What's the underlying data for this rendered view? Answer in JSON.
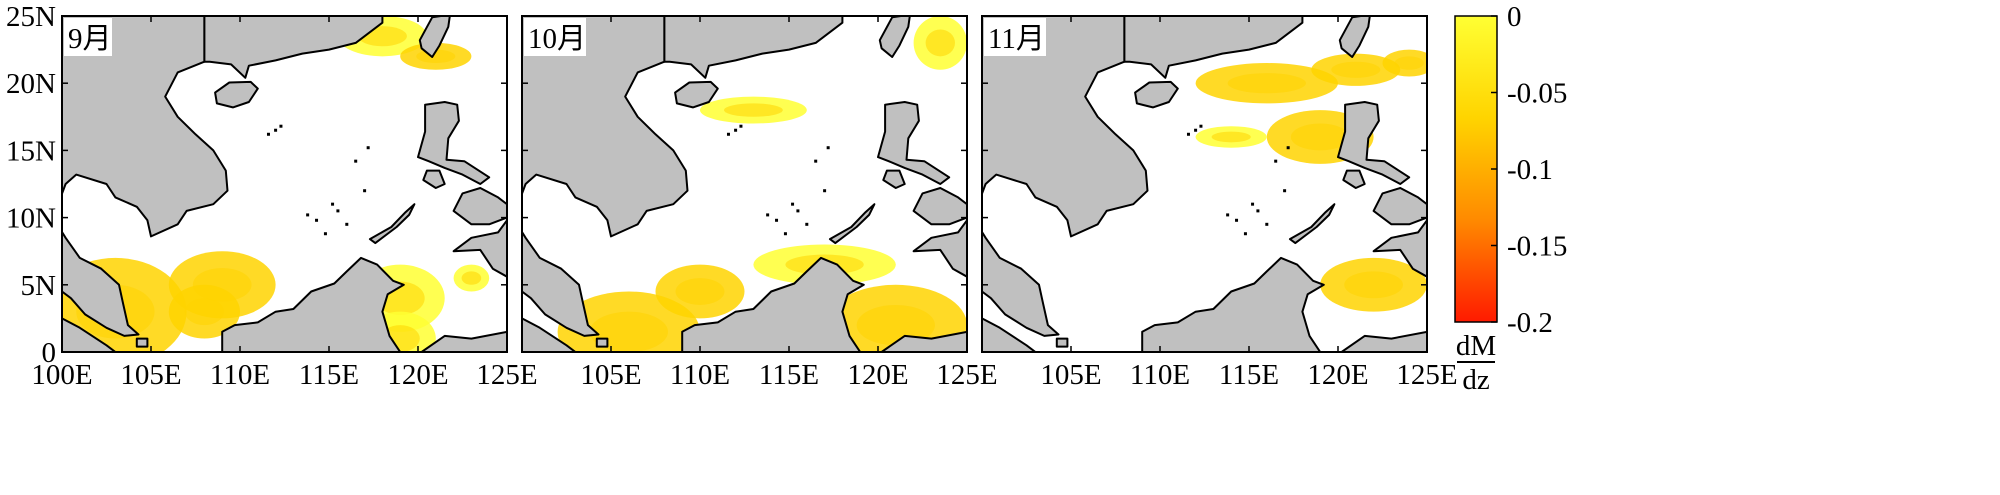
{
  "panels": [
    {
      "id": "sep",
      "label": "9月",
      "show_y_labels": true,
      "blobs": [
        {
          "cx": 103,
          "cy": 3,
          "rx": 4,
          "ry": 4,
          "v": -0.07
        },
        {
          "cx": 109,
          "cy": 5,
          "rx": 3,
          "ry": 2.5,
          "v": -0.05
        },
        {
          "cx": 108,
          "cy": 3,
          "rx": 2,
          "ry": 2,
          "v": -0.06
        },
        {
          "cx": 119,
          "cy": 4,
          "rx": 2.5,
          "ry": 2.5,
          "v": -0.03
        },
        {
          "cx": 119,
          "cy": 1,
          "rx": 2,
          "ry": 2,
          "v": -0.02
        },
        {
          "cx": 118,
          "cy": 23.5,
          "rx": 2.5,
          "ry": 1.5,
          "v": -0.03
        },
        {
          "cx": 121,
          "cy": 22,
          "rx": 2,
          "ry": 1,
          "v": -0.04
        },
        {
          "cx": 123,
          "cy": 5.5,
          "rx": 1,
          "ry": 1,
          "v": -0.02
        }
      ]
    },
    {
      "id": "oct",
      "label": "10月",
      "show_y_labels": false,
      "blobs": [
        {
          "cx": 106,
          "cy": 1.5,
          "rx": 4,
          "ry": 3,
          "v": -0.07
        },
        {
          "cx": 110,
          "cy": 4.5,
          "rx": 2.5,
          "ry": 2,
          "v": -0.04
        },
        {
          "cx": 121,
          "cy": 2,
          "rx": 4,
          "ry": 3,
          "v": -0.07
        },
        {
          "cx": 117,
          "cy": 6.5,
          "rx": 4,
          "ry": 1.5,
          "v": -0.03
        },
        {
          "cx": 113,
          "cy": 18,
          "rx": 3,
          "ry": 1,
          "v": -0.02
        },
        {
          "cx": 123.5,
          "cy": 23,
          "rx": 1.5,
          "ry": 2,
          "v": -0.03
        }
      ]
    },
    {
      "id": "nov",
      "label": "11月",
      "show_y_labels": false,
      "blobs": [
        {
          "cx": 119,
          "cy": 16,
          "rx": 3,
          "ry": 2,
          "v": -0.06
        },
        {
          "cx": 116,
          "cy": 20,
          "rx": 4,
          "ry": 1.5,
          "v": -0.04
        },
        {
          "cx": 121,
          "cy": 21,
          "rx": 2.5,
          "ry": 1.2,
          "v": -0.04
        },
        {
          "cx": 122,
          "cy": 5,
          "rx": 3,
          "ry": 2,
          "v": -0.04
        },
        {
          "cx": 124,
          "cy": 21.5,
          "rx": 1.5,
          "ry": 1,
          "v": -0.06
        },
        {
          "cx": 114,
          "cy": 16,
          "rx": 2,
          "ry": 0.8,
          "v": -0.03
        }
      ]
    }
  ],
  "x_ticks": [
    {
      "value": 100,
      "label": "100E"
    },
    {
      "value": 105,
      "label": "105E"
    },
    {
      "value": 110,
      "label": "110E"
    },
    {
      "value": 115,
      "label": "115E"
    },
    {
      "value": 120,
      "label": "120E"
    },
    {
      "value": 125,
      "label": "125E"
    }
  ],
  "y_ticks": [
    {
      "value": 0,
      "label": "0"
    },
    {
      "value": 5,
      "label": "5N"
    },
    {
      "value": 10,
      "label": "10N"
    },
    {
      "value": 15,
      "label": "15N"
    },
    {
      "value": 20,
      "label": "20N"
    },
    {
      "value": 25,
      "label": "25N"
    }
  ],
  "extent": {
    "lon": [
      100,
      125
    ],
    "lat": [
      0,
      25
    ]
  },
  "colorbar": {
    "range": [
      -0.2,
      0
    ],
    "ticks": [
      {
        "value": 0,
        "label": "0"
      },
      {
        "value": -0.05,
        "label": "-0.05"
      },
      {
        "value": -0.1,
        "label": "-0.1"
      },
      {
        "value": -0.15,
        "label": "-0.15"
      },
      {
        "value": -0.2,
        "label": "-0.2"
      }
    ],
    "colors": [
      "#ff1a00",
      "#ff8a00",
      "#ffd400",
      "#ffff33"
    ],
    "unit_numerator": "dM",
    "unit_denominator": "dz"
  },
  "colors": {
    "land": "#c0c0c0",
    "ocean": "#ffffff",
    "coast": "#000000"
  }
}
